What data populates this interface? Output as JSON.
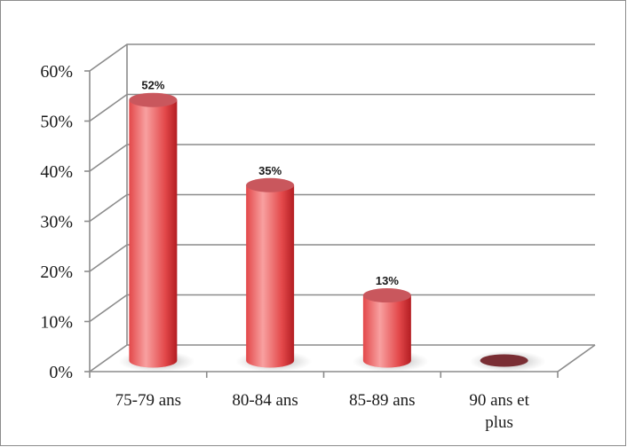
{
  "chart_data": {
    "type": "bar",
    "style": "3d-cylinder",
    "categories": [
      [
        "75-79 ans"
      ],
      [
        "80-84 ans"
      ],
      [
        "85-89 ans"
      ],
      [
        "90 ans et",
        "plus"
      ]
    ],
    "values": [
      52,
      35,
      13,
      0
    ],
    "data_labels": [
      "52%",
      "35%",
      "13%",
      ""
    ],
    "y_ticks": [
      "0%",
      "10%",
      "20%",
      "30%",
      "40%",
      "50%",
      "60%"
    ],
    "ylim": [
      0,
      60
    ],
    "grid": true,
    "legend": "none",
    "colors": {
      "bar_light": "#f8a0a0",
      "bar_mid": "#e3484a",
      "bar_dark": "#b31d22",
      "bar_top": "#c9575d",
      "grid": "#8c8c8c",
      "floor_shadow": "#9a9a9a"
    }
  }
}
